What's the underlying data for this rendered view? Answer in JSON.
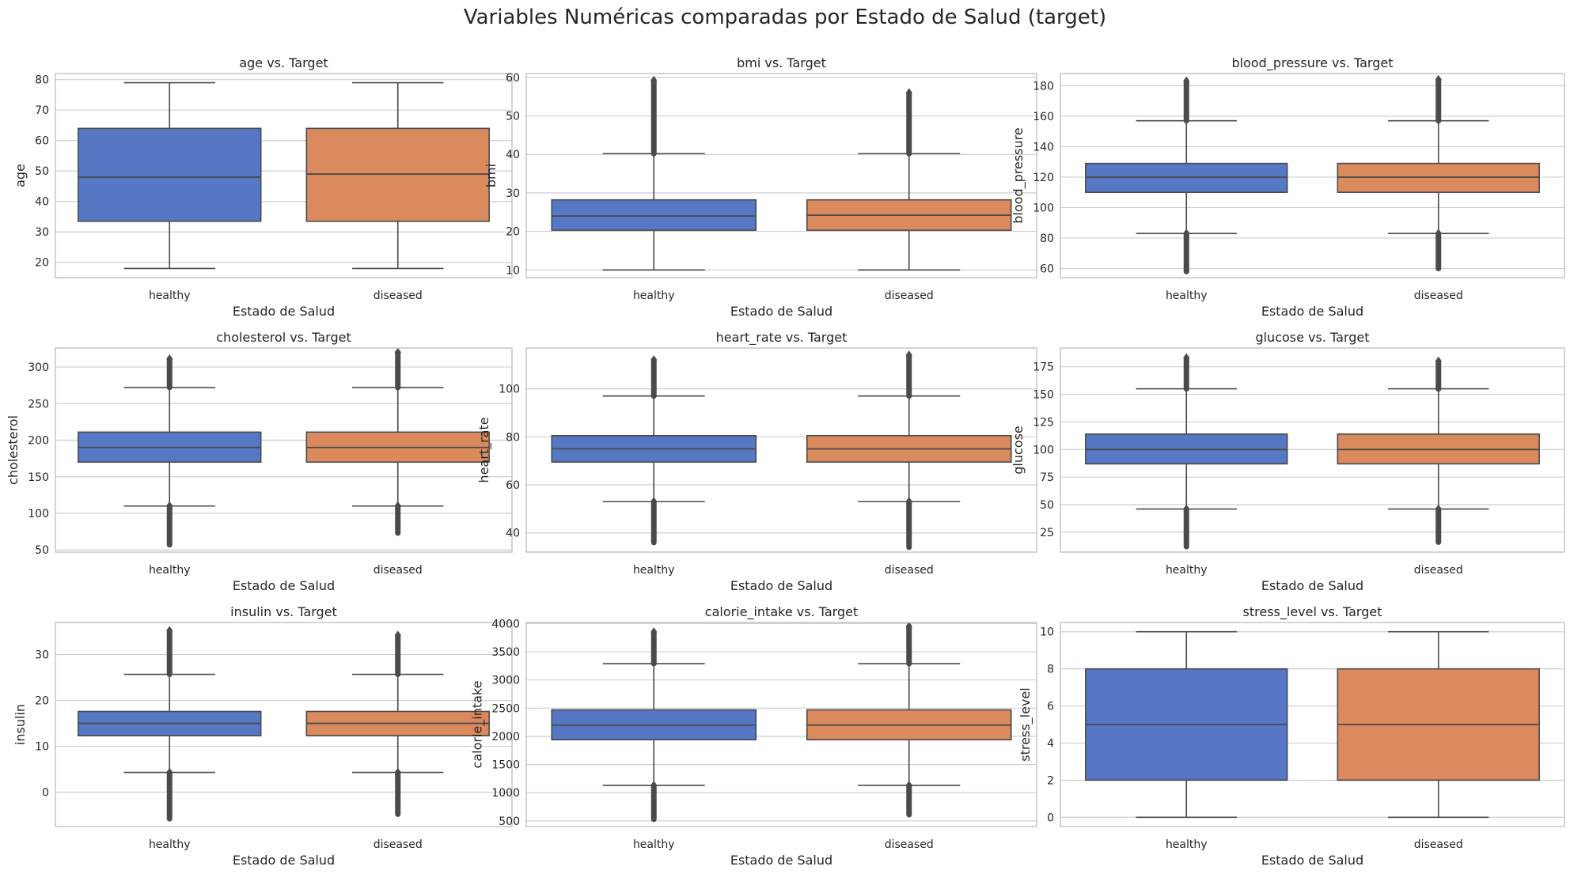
{
  "figure": {
    "title": "Variables Numéricas comparadas por Estado de Salud (target)",
    "colors": {
      "healthy": "#5577c4",
      "diseased": "#da8a5c",
      "line": "#4a4a4a",
      "grid": "#cfcfcf",
      "frame": "#c6c6c6"
    }
  },
  "chart_data": [
    {
      "type": "box",
      "title": "age vs. Target",
      "xlabel": "Estado de Salud",
      "ylabel": "age",
      "categories": [
        "healthy",
        "diseased"
      ],
      "ylim": [
        15,
        82
      ],
      "yticks": [
        20,
        30,
        40,
        50,
        60,
        70,
        80
      ],
      "boxes": [
        {
          "category": "healthy",
          "min": 18,
          "q1": 33.5,
          "median": 48,
          "q3": 64,
          "max": 79,
          "outliers_low": [],
          "outliers_high": []
        },
        {
          "category": "diseased",
          "min": 18,
          "q1": 33.5,
          "median": 49,
          "q3": 64,
          "max": 79,
          "outliers_low": [],
          "outliers_high": []
        }
      ]
    },
    {
      "type": "box",
      "title": "bmi vs. Target",
      "xlabel": "Estado de Salud",
      "ylabel": "bmi",
      "categories": [
        "healthy",
        "diseased"
      ],
      "ylim": [
        8,
        61
      ],
      "yticks": [
        10,
        20,
        30,
        40,
        50,
        60
      ],
      "boxes": [
        {
          "category": "healthy",
          "min": 10,
          "q1": 20.3,
          "median": 24,
          "q3": 28.2,
          "max": 40.2,
          "outliers_low": [],
          "outliers_high": [
            40.2,
            59.2
          ]
        },
        {
          "category": "diseased",
          "min": 10,
          "q1": 20.3,
          "median": 24.2,
          "q3": 28.2,
          "max": 40.2,
          "outliers_low": [],
          "outliers_high": [
            40.2,
            56
          ]
        }
      ]
    },
    {
      "type": "box",
      "title": "blood_pressure vs. Target",
      "xlabel": "Estado de Salud",
      "ylabel": "blood_pressure",
      "categories": [
        "healthy",
        "diseased"
      ],
      "ylim": [
        54,
        188
      ],
      "yticks": [
        60,
        80,
        100,
        120,
        140,
        160,
        180
      ],
      "boxes": [
        {
          "category": "healthy",
          "min": 83,
          "q1": 110,
          "median": 120,
          "q3": 129,
          "max": 157,
          "outliers_low": [
            58,
            83
          ],
          "outliers_high": [
            157,
            183
          ]
        },
        {
          "category": "diseased",
          "min": 83,
          "q1": 110,
          "median": 120,
          "q3": 129,
          "max": 157,
          "outliers_low": [
            60,
            83
          ],
          "outliers_high": [
            157,
            184
          ]
        }
      ]
    },
    {
      "type": "box",
      "title": "cholesterol vs. Target",
      "xlabel": "Estado de Salud",
      "ylabel": "cholesterol",
      "categories": [
        "healthy",
        "diseased"
      ],
      "ylim": [
        47,
        326
      ],
      "yticks": [
        50,
        100,
        150,
        200,
        250,
        300
      ],
      "boxes": [
        {
          "category": "healthy",
          "min": 110,
          "q1": 170,
          "median": 190,
          "q3": 211,
          "max": 272,
          "outliers_low": [
            57,
            110
          ],
          "outliers_high": [
            272,
            311
          ]
        },
        {
          "category": "diseased",
          "min": 110,
          "q1": 170,
          "median": 190,
          "q3": 211,
          "max": 272,
          "outliers_low": [
            73,
            110
          ],
          "outliers_high": [
            272,
            320
          ]
        }
      ]
    },
    {
      "type": "box",
      "title": "heart_rate vs. Target",
      "xlabel": "Estado de Salud",
      "ylabel": "heart_rate",
      "categories": [
        "healthy",
        "diseased"
      ],
      "ylim": [
        32,
        117
      ],
      "yticks": [
        40,
        60,
        80,
        100
      ],
      "boxes": [
        {
          "category": "healthy",
          "min": 53,
          "q1": 69.5,
          "median": 75,
          "q3": 80.5,
          "max": 97,
          "outliers_low": [
            36,
            53
          ],
          "outliers_high": [
            97,
            112
          ]
        },
        {
          "category": "diseased",
          "min": 53,
          "q1": 69.5,
          "median": 75,
          "q3": 80.5,
          "max": 97,
          "outliers_low": [
            34,
            53
          ],
          "outliers_high": [
            97,
            114
          ]
        }
      ]
    },
    {
      "type": "box",
      "title": "glucose vs. Target",
      "xlabel": "Estado de Salud",
      "ylabel": "glucose",
      "categories": [
        "healthy",
        "diseased"
      ],
      "ylim": [
        7,
        192
      ],
      "yticks": [
        25,
        50,
        75,
        100,
        125,
        150,
        175
      ],
      "boxes": [
        {
          "category": "healthy",
          "min": 46,
          "q1": 87,
          "median": 100,
          "q3": 114,
          "max": 155,
          "outliers_low": [
            12,
            46
          ],
          "outliers_high": [
            155,
            183
          ]
        },
        {
          "category": "diseased",
          "min": 46,
          "q1": 87,
          "median": 100,
          "q3": 114,
          "max": 155,
          "outliers_low": [
            16,
            46
          ],
          "outliers_high": [
            155,
            180
          ]
        }
      ]
    },
    {
      "type": "box",
      "title": "insulin vs. Target",
      "xlabel": "Estado de Salud",
      "ylabel": "insulin",
      "categories": [
        "healthy",
        "diseased"
      ],
      "ylim": [
        -7.5,
        37
      ],
      "yticks": [
        0,
        10,
        20,
        30
      ],
      "boxes": [
        {
          "category": "healthy",
          "min": 4.3,
          "q1": 12.3,
          "median": 15,
          "q3": 17.6,
          "max": 25.7,
          "outliers_low": [
            -5.8,
            4.3
          ],
          "outliers_high": [
            25.7,
            35.2
          ]
        },
        {
          "category": "diseased",
          "min": 4.3,
          "q1": 12.3,
          "median": 15,
          "q3": 17.6,
          "max": 25.7,
          "outliers_low": [
            -4.8,
            4.3
          ],
          "outliers_high": [
            25.7,
            34.2
          ]
        }
      ]
    },
    {
      "type": "box",
      "title": "calorie_intake vs. Target",
      "xlabel": "Estado de Salud",
      "ylabel": "calorie_intake",
      "categories": [
        "healthy",
        "diseased"
      ],
      "ylim": [
        400,
        4020
      ],
      "yticks": [
        500,
        1000,
        1500,
        2000,
        2500,
        3000,
        3500,
        4000
      ],
      "boxes": [
        {
          "category": "healthy",
          "min": 1130,
          "q1": 1940,
          "median": 2200,
          "q3": 2470,
          "max": 3290,
          "outliers_low": [
            530,
            1130
          ],
          "outliers_high": [
            3290,
            3850
          ]
        },
        {
          "category": "diseased",
          "min": 1130,
          "q1": 1940,
          "median": 2200,
          "q3": 2470,
          "max": 3290,
          "outliers_low": [
            610,
            1130
          ],
          "outliers_high": [
            3290,
            3950
          ]
        }
      ]
    },
    {
      "type": "box",
      "title": "stress_level vs. Target",
      "xlabel": "Estado de Salud",
      "ylabel": "stress_level",
      "categories": [
        "healthy",
        "diseased"
      ],
      "ylim": [
        -0.5,
        10.5
      ],
      "yticks": [
        0,
        2,
        4,
        6,
        8,
        10
      ],
      "boxes": [
        {
          "category": "healthy",
          "min": 0,
          "q1": 2,
          "median": 5,
          "q3": 8,
          "max": 10,
          "outliers_low": [],
          "outliers_high": []
        },
        {
          "category": "diseased",
          "min": 0,
          "q1": 2,
          "median": 5,
          "q3": 8,
          "max": 10,
          "outliers_low": [],
          "outliers_high": []
        }
      ]
    }
  ]
}
